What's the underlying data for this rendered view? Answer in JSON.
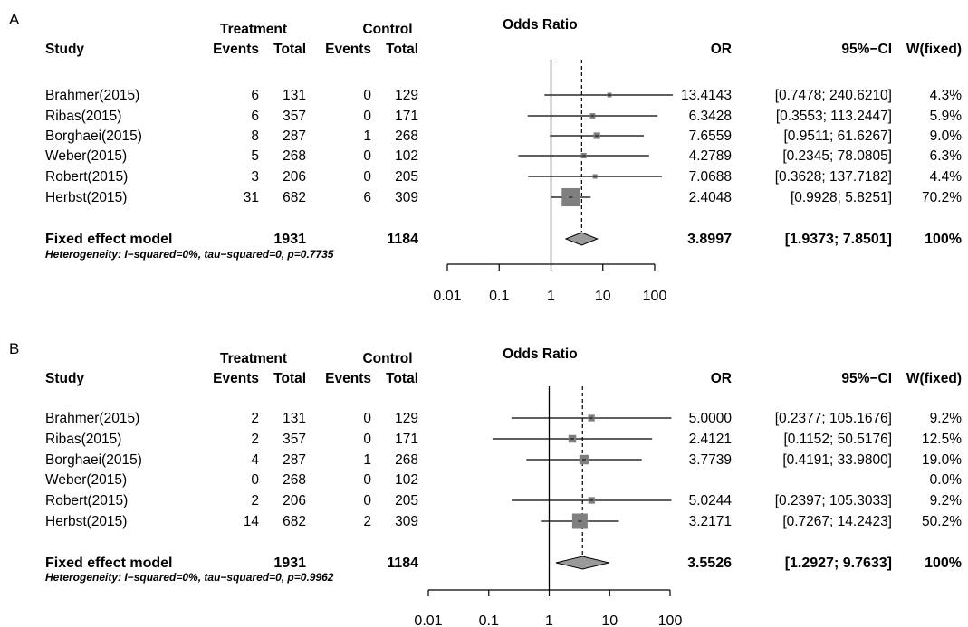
{
  "chart_data": [
    {
      "type": "forest",
      "panel_label": "A",
      "group_headers": {
        "treatment": "Treatment",
        "control": "Control",
        "plot_title": "Odds Ratio"
      },
      "columns": {
        "study": "Study",
        "events_t": "Events",
        "total_t": "Total",
        "events_c": "Events",
        "total_c": "Total",
        "or": "OR",
        "ci": "95%−CI",
        "weight": "W(fixed)"
      },
      "studies": [
        {
          "name": "Brahmer(2015)",
          "events_t": 6,
          "total_t": 131,
          "events_c": 0,
          "total_c": 129,
          "or": 13.4143,
          "lower": 0.7478,
          "upper": 240.621,
          "or_text": "13.4143",
          "ci_text": "[0.7478; 240.6210]",
          "weight": 4.3,
          "weight_text": "4.3%"
        },
        {
          "name": "Ribas(2015)",
          "events_t": 6,
          "total_t": 357,
          "events_c": 0,
          "total_c": 171,
          "or": 6.3428,
          "lower": 0.3553,
          "upper": 113.2447,
          "or_text": "6.3428",
          "ci_text": "[0.3553; 113.2447]",
          "weight": 5.9,
          "weight_text": "5.9%"
        },
        {
          "name": "Borghaei(2015)",
          "events_t": 8,
          "total_t": 287,
          "events_c": 1,
          "total_c": 268,
          "or": 7.6559,
          "lower": 0.9511,
          "upper": 61.6267,
          "or_text": "7.6559",
          "ci_text": "[0.9511; 61.6267]",
          "weight": 9.0,
          "weight_text": "9.0%"
        },
        {
          "name": "Weber(2015)",
          "events_t": 5,
          "total_t": 268,
          "events_c": 0,
          "total_c": 102,
          "or": 4.2789,
          "lower": 0.2345,
          "upper": 78.0805,
          "or_text": "4.2789",
          "ci_text": "[0.2345; 78.0805]",
          "weight": 6.3,
          "weight_text": "6.3%"
        },
        {
          "name": "Robert(2015)",
          "events_t": 3,
          "total_t": 206,
          "events_c": 0,
          "total_c": 205,
          "or": 7.0688,
          "lower": 0.3628,
          "upper": 137.7182,
          "or_text": "7.0688",
          "ci_text": "[0.3628; 137.7182]",
          "weight": 4.4,
          "weight_text": "4.4%"
        },
        {
          "name": "Herbst(2015)",
          "events_t": 31,
          "total_t": 682,
          "events_c": 6,
          "total_c": 309,
          "or": 2.4048,
          "lower": 0.9928,
          "upper": 5.8251,
          "or_text": "2.4048",
          "ci_text": "[0.9928;   5.8251]",
          "weight": 70.2,
          "weight_text": "70.2%"
        }
      ],
      "summary": {
        "label": "Fixed effect model",
        "total_t": 1931,
        "total_c": 1184,
        "or": 3.8997,
        "lower": 1.9373,
        "upper": 7.8501,
        "or_text": "3.8997",
        "ci_text": "[1.9373;   7.8501]",
        "weight_text": "100%"
      },
      "heterogeneity": "Heterogeneity: I−squared=0%, tau−squared=0, p=0.7735",
      "xscale": "log",
      "xticks": [
        0.01,
        0.1,
        1,
        10,
        100
      ],
      "xtick_labels": [
        "0.01",
        "0.1",
        "1",
        "10",
        "100"
      ]
    },
    {
      "type": "forest",
      "panel_label": "B",
      "group_headers": {
        "treatment": "Treatment",
        "control": "Control",
        "plot_title": "Odds Ratio"
      },
      "columns": {
        "study": "Study",
        "events_t": "Events",
        "total_t": "Total",
        "events_c": "Events",
        "total_c": "Total",
        "or": "OR",
        "ci": "95%−CI",
        "weight": "W(fixed)"
      },
      "studies": [
        {
          "name": "Brahmer(2015)",
          "events_t": 2,
          "total_t": 131,
          "events_c": 0,
          "total_c": 129,
          "or": 5.0,
          "lower": 0.2377,
          "upper": 105.1676,
          "or_text": "5.0000",
          "ci_text": "[0.2377; 105.1676]",
          "weight": 9.2,
          "weight_text": "9.2%"
        },
        {
          "name": "Ribas(2015)",
          "events_t": 2,
          "total_t": 357,
          "events_c": 0,
          "total_c": 171,
          "or": 2.4121,
          "lower": 0.1152,
          "upper": 50.5176,
          "or_text": "2.4121",
          "ci_text": "[0.1152; 50.5176]",
          "weight": 12.5,
          "weight_text": "12.5%"
        },
        {
          "name": "Borghaei(2015)",
          "events_t": 4,
          "total_t": 287,
          "events_c": 1,
          "total_c": 268,
          "or": 3.7739,
          "lower": 0.4191,
          "upper": 33.98,
          "or_text": "3.7739",
          "ci_text": "[0.4191; 33.9800]",
          "weight": 19.0,
          "weight_text": "19.0%"
        },
        {
          "name": "Weber(2015)",
          "events_t": 0,
          "total_t": 268,
          "events_c": 0,
          "total_c": 102,
          "or": null,
          "lower": null,
          "upper": null,
          "or_text": "",
          "ci_text": "",
          "weight": 0.0,
          "weight_text": "0.0%"
        },
        {
          "name": "Robert(2015)",
          "events_t": 2,
          "total_t": 206,
          "events_c": 0,
          "total_c": 205,
          "or": 5.0244,
          "lower": 0.2397,
          "upper": 105.3033,
          "or_text": "5.0244",
          "ci_text": "[0.2397; 105.3033]",
          "weight": 9.2,
          "weight_text": "9.2%"
        },
        {
          "name": "Herbst(2015)",
          "events_t": 14,
          "total_t": 682,
          "events_c": 2,
          "total_c": 309,
          "or": 3.2171,
          "lower": 0.7267,
          "upper": 14.2423,
          "or_text": "3.2171",
          "ci_text": "[0.7267; 14.2423]",
          "weight": 50.2,
          "weight_text": "50.2%"
        }
      ],
      "summary": {
        "label": "Fixed effect model",
        "total_t": 1931,
        "total_c": 1184,
        "or": 3.5526,
        "lower": 1.2927,
        "upper": 9.7633,
        "or_text": "3.5526",
        "ci_text": "[1.2927;   9.7633]",
        "weight_text": "100%"
      },
      "heterogeneity": "Heterogeneity: I−squared=0%, tau−squared=0, p=0.9962",
      "xscale": "log",
      "xticks": [
        0.01,
        0.1,
        1,
        10,
        100
      ],
      "xtick_labels": [
        "0.01",
        "0.1",
        "1",
        "10",
        "100"
      ]
    }
  ],
  "colors": {
    "square": "#7f7f7f",
    "diamond": "#9a9a9a",
    "line": "#000000"
  }
}
